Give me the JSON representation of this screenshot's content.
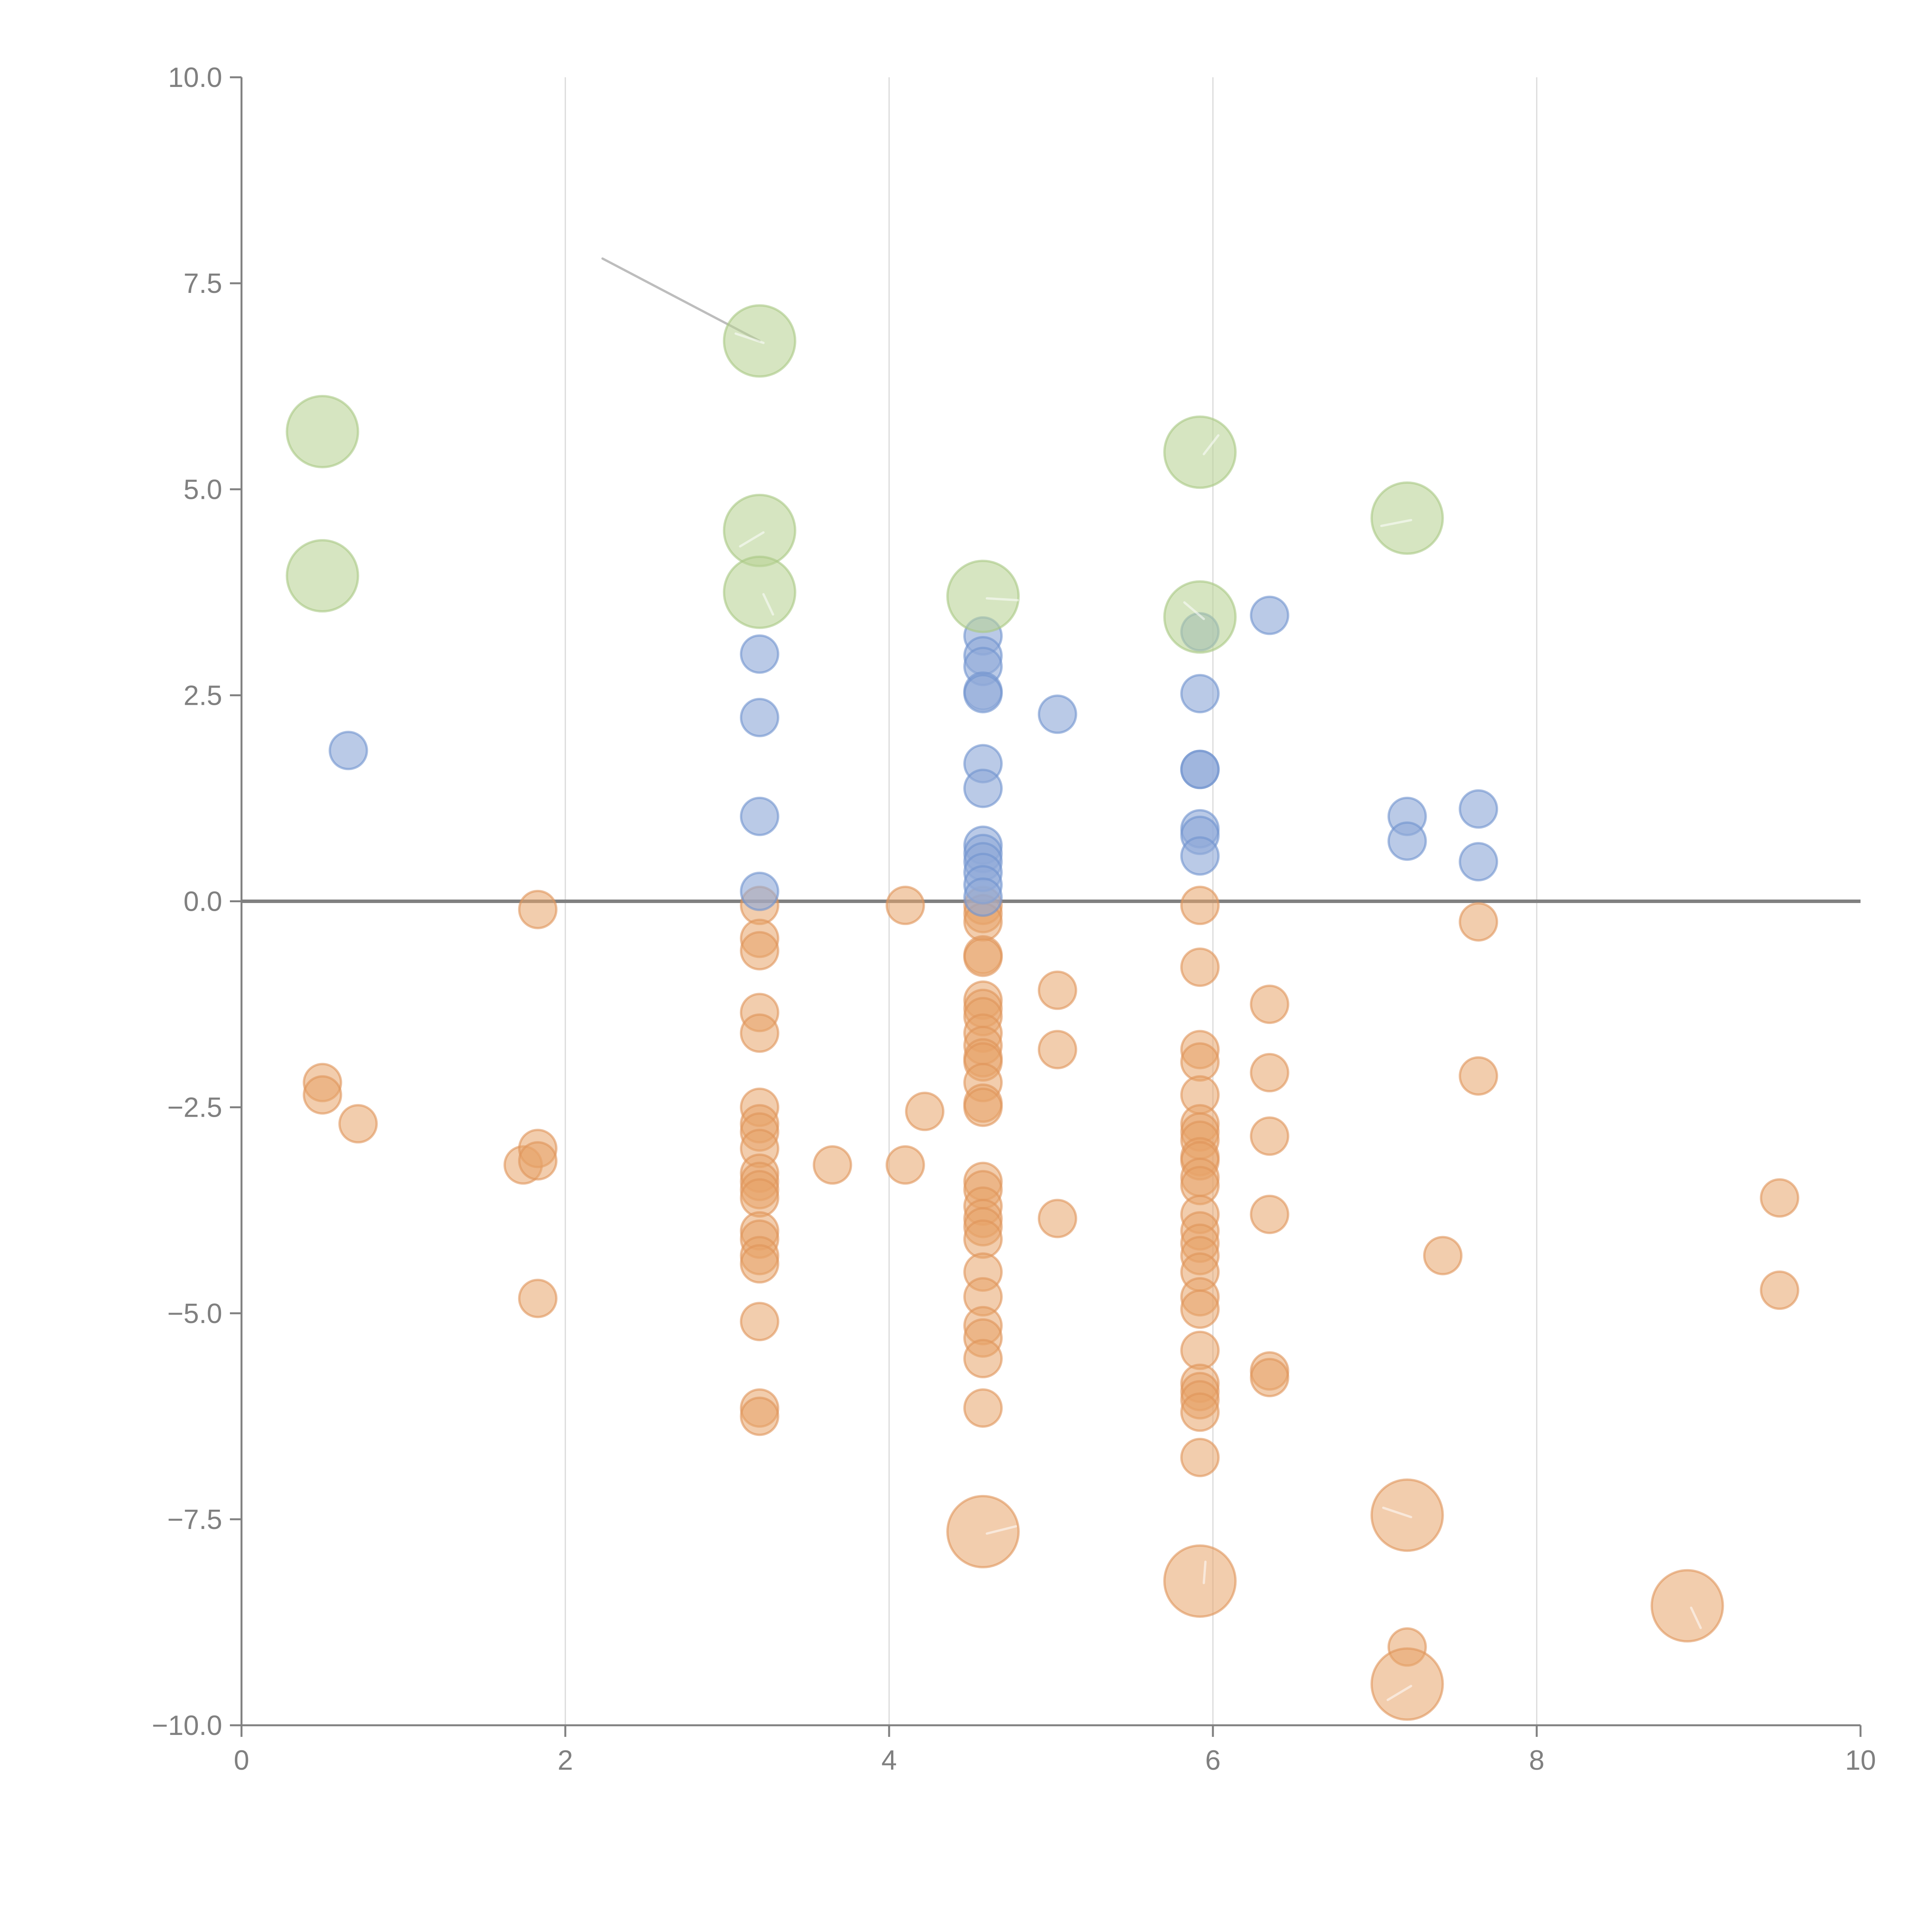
{
  "chart_data": {
    "type": "scatter",
    "title": "",
    "xlabel": "",
    "ylabel": "",
    "xlim": [
      0,
      10
    ],
    "ylim": [
      -10,
      10
    ],
    "x_ticks": [
      "0",
      "2",
      "4",
      "6",
      "8",
      "10"
    ],
    "x_tick_values": [
      0,
      2,
      4,
      6,
      8,
      10
    ],
    "y_ticks": [
      "10.0",
      "7.5",
      "5.0",
      "2.5",
      "0.0",
      "−2.5",
      "−5.0",
      "−7.5",
      "−10.0"
    ],
    "y_tick_values": [
      10,
      7.5,
      5,
      2.5,
      0,
      -2.5,
      -5,
      -7.5,
      -10
    ],
    "grid": "vertical lines at x ticks",
    "reference_line": {
      "axis": "y",
      "value": 0
    },
    "legend": "none",
    "series": [
      {
        "name": "green",
        "color": "#b9d395",
        "size": "large",
        "points": [
          [
            0.5,
            5.7
          ],
          [
            0.5,
            3.95
          ],
          [
            3.2,
            6.8
          ],
          [
            3.2,
            4.5
          ],
          [
            3.2,
            3.75
          ],
          [
            4.58,
            3.7
          ],
          [
            5.92,
            5.45
          ],
          [
            5.92,
            3.45
          ],
          [
            7.2,
            4.65
          ]
        ]
      },
      {
        "name": "blue",
        "color": "#8faad8",
        "size": "small",
        "points": [
          [
            0.66,
            1.83
          ],
          [
            3.2,
            3.0
          ],
          [
            3.2,
            2.23
          ],
          [
            3.2,
            1.03
          ],
          [
            3.2,
            0.12
          ],
          [
            4.58,
            3.22
          ],
          [
            4.58,
            2.98
          ],
          [
            4.58,
            2.85
          ],
          [
            4.58,
            2.55
          ],
          [
            4.58,
            2.52
          ],
          [
            4.58,
            1.67
          ],
          [
            4.58,
            1.37
          ],
          [
            4.58,
            0.68
          ],
          [
            4.58,
            0.58
          ],
          [
            4.58,
            0.48
          ],
          [
            4.58,
            0.35
          ],
          [
            4.58,
            0.2
          ],
          [
            4.58,
            0.05
          ],
          [
            5.04,
            2.27
          ],
          [
            5.92,
            3.27
          ],
          [
            5.92,
            2.52
          ],
          [
            5.92,
            1.6
          ],
          [
            5.92,
            1.6
          ],
          [
            5.92,
            0.88
          ],
          [
            5.92,
            0.8
          ],
          [
            5.92,
            0.55
          ],
          [
            6.35,
            3.47
          ],
          [
            7.2,
            1.03
          ],
          [
            7.2,
            0.73
          ],
          [
            7.64,
            1.12
          ],
          [
            7.64,
            0.48
          ]
        ]
      },
      {
        "name": "orange",
        "color": "#e8a46a",
        "size": "small",
        "points": [
          [
            0.5,
            -2.2
          ],
          [
            0.5,
            -2.35
          ],
          [
            0.72,
            -2.7
          ],
          [
            1.74,
            -3.2
          ],
          [
            1.83,
            -3.0
          ],
          [
            1.83,
            -3.15
          ],
          [
            1.83,
            -0.1
          ],
          [
            1.83,
            -4.82
          ],
          [
            3.2,
            -0.05
          ],
          [
            3.2,
            -0.45
          ],
          [
            3.2,
            -0.6
          ],
          [
            3.2,
            -1.35
          ],
          [
            3.2,
            -1.6
          ],
          [
            3.2,
            -2.5
          ],
          [
            3.2,
            -2.7
          ],
          [
            3.2,
            -2.8
          ],
          [
            3.2,
            -3.0
          ],
          [
            3.2,
            -3.3
          ],
          [
            3.2,
            -3.4
          ],
          [
            3.2,
            -3.5
          ],
          [
            3.2,
            -3.6
          ],
          [
            3.2,
            -4.0
          ],
          [
            3.2,
            -4.1
          ],
          [
            3.2,
            -4.3
          ],
          [
            3.2,
            -4.4
          ],
          [
            3.2,
            -5.1
          ],
          [
            3.2,
            -6.15
          ],
          [
            3.2,
            -6.25
          ],
          [
            3.65,
            -3.2
          ],
          [
            4.1,
            -0.05
          ],
          [
            4.1,
            -3.2
          ],
          [
            4.22,
            -2.55
          ],
          [
            4.58,
            -0.05
          ],
          [
            4.58,
            -0.15
          ],
          [
            4.58,
            -0.25
          ],
          [
            4.58,
            -0.65
          ],
          [
            4.58,
            -0.68
          ],
          [
            4.58,
            -1.2
          ],
          [
            4.58,
            -1.3
          ],
          [
            4.58,
            -1.4
          ],
          [
            4.58,
            -1.6
          ],
          [
            4.58,
            -1.75
          ],
          [
            4.58,
            -1.9
          ],
          [
            4.58,
            -1.95
          ],
          [
            4.58,
            -2.2
          ],
          [
            4.58,
            -2.45
          ],
          [
            4.58,
            -2.5
          ],
          [
            4.58,
            -3.4
          ],
          [
            4.58,
            -3.5
          ],
          [
            4.58,
            -3.7
          ],
          [
            4.58,
            -3.85
          ],
          [
            4.58,
            -3.95
          ],
          [
            4.58,
            -4.1
          ],
          [
            4.58,
            -4.5
          ],
          [
            4.58,
            -4.8
          ],
          [
            4.58,
            -5.15
          ],
          [
            4.58,
            -5.3
          ],
          [
            4.58,
            -5.55
          ],
          [
            4.58,
            -6.15
          ],
          [
            5.04,
            -1.08
          ],
          [
            5.04,
            -1.8
          ],
          [
            5.04,
            -3.85
          ],
          [
            5.92,
            -0.05
          ],
          [
            5.92,
            -0.8
          ],
          [
            5.92,
            -1.8
          ],
          [
            5.92,
            -1.95
          ],
          [
            5.92,
            -2.35
          ],
          [
            5.92,
            -2.7
          ],
          [
            5.92,
            -2.8
          ],
          [
            5.92,
            -2.9
          ],
          [
            5.92,
            -3.1
          ],
          [
            5.92,
            -3.15
          ],
          [
            5.92,
            -3.35
          ],
          [
            5.92,
            -3.45
          ],
          [
            5.92,
            -3.8
          ],
          [
            5.92,
            -4.0
          ],
          [
            5.92,
            -4.15
          ],
          [
            5.92,
            -4.3
          ],
          [
            5.92,
            -4.5
          ],
          [
            5.92,
            -4.8
          ],
          [
            5.92,
            -4.95
          ],
          [
            5.92,
            -5.45
          ],
          [
            5.92,
            -5.85
          ],
          [
            5.92,
            -5.95
          ],
          [
            5.92,
            -6.05
          ],
          [
            5.92,
            -6.2
          ],
          [
            5.92,
            -6.75
          ],
          [
            6.35,
            -1.25
          ],
          [
            6.35,
            -2.08
          ],
          [
            6.35,
            -2.85
          ],
          [
            6.35,
            -3.8
          ],
          [
            6.35,
            -5.7
          ],
          [
            6.35,
            -5.78
          ],
          [
            7.2,
            -9.05
          ],
          [
            7.42,
            -4.3
          ],
          [
            7.64,
            -0.25
          ],
          [
            7.64,
            -2.12
          ],
          [
            9.5,
            -3.6
          ],
          [
            9.5,
            -4.72
          ]
        ]
      },
      {
        "name": "orange-large",
        "color": "#e8a46a",
        "size": "large",
        "points": [
          [
            4.58,
            -7.65
          ],
          [
            5.92,
            -8.25
          ],
          [
            7.2,
            -7.45
          ],
          [
            7.2,
            -9.5
          ],
          [
            8.93,
            -8.55
          ]
        ]
      }
    ],
    "annotations": [
      {
        "type": "connector-line",
        "from": [
          2.23,
          7.8
        ],
        "to": [
          3.2,
          6.8
        ],
        "label": ""
      }
    ]
  }
}
